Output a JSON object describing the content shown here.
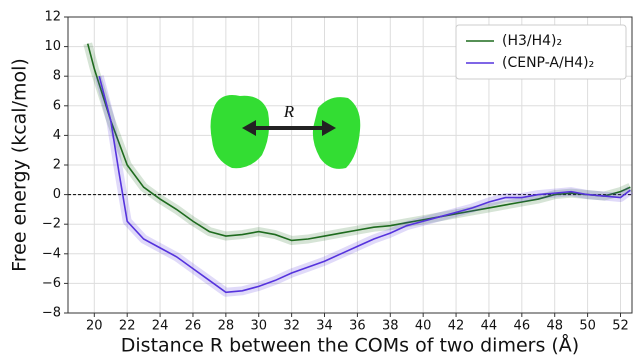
{
  "chart_data": {
    "type": "line",
    "xlabel": "Distance R between the COMs of two dimers (Å)",
    "ylabel": "Free energy (kcal/mol)",
    "annotation": "R",
    "xlim": [
      18.4,
      52.7
    ],
    "ylim": [
      -8,
      12
    ],
    "xticks": [
      20,
      22,
      24,
      26,
      28,
      30,
      32,
      34,
      36,
      38,
      40,
      42,
      44,
      46,
      48,
      50,
      52
    ],
    "yticks": [
      {
        "value": -8,
        "label": "−8"
      },
      {
        "value": -6,
        "label": "−6"
      },
      {
        "value": -4,
        "label": "−4"
      },
      {
        "value": -2,
        "label": "−2"
      },
      0,
      2,
      4,
      6,
      8,
      10,
      12
    ],
    "grid": true,
    "legend": "upper right",
    "series": [
      {
        "name": "(H3/H4)₂",
        "color": "#1e6b1e",
        "x": [
          19.6,
          20,
          21,
          22,
          23,
          24,
          25,
          26,
          27,
          28,
          29,
          30,
          31,
          32,
          33,
          34,
          35,
          36,
          37,
          38,
          39,
          40,
          41,
          42,
          43,
          44,
          45,
          46,
          47,
          48,
          49,
          50,
          51,
          52,
          52.6
        ],
        "values": [
          10.2,
          8.5,
          5,
          2,
          0.5,
          -0.3,
          -1,
          -1.8,
          -2.5,
          -2.8,
          -2.7,
          -2.5,
          -2.7,
          -3.1,
          -3,
          -2.8,
          -2.6,
          -2.4,
          -2.2,
          -2.1,
          -1.9,
          -1.7,
          -1.5,
          -1.3,
          -1.1,
          -0.9,
          -0.7,
          -0.5,
          -0.3,
          0,
          0.1,
          0,
          -0.1,
          0.2,
          0.5
        ]
      },
      {
        "name": "(CENP-A/H4)₂",
        "color": "#5533dd",
        "x": [
          20.3,
          21,
          21.5,
          22,
          23,
          24,
          25,
          26,
          27,
          28,
          29,
          30,
          31,
          32,
          33,
          34,
          35,
          36,
          37,
          38,
          39,
          40,
          41,
          42,
          43,
          44,
          45,
          46,
          47,
          48,
          49,
          50,
          51,
          52,
          52.6
        ],
        "values": [
          8,
          5,
          1.5,
          -1.8,
          -3,
          -3.6,
          -4.2,
          -5,
          -5.8,
          -6.6,
          -6.5,
          -6.2,
          -5.8,
          -5.3,
          -4.9,
          -4.5,
          -4,
          -3.5,
          -3,
          -2.6,
          -2.1,
          -1.8,
          -1.5,
          -1.2,
          -0.9,
          -0.5,
          -0.2,
          -0.2,
          0,
          0.1,
          0.2,
          0,
          -0.1,
          -0.2,
          0.3
        ]
      }
    ]
  }
}
